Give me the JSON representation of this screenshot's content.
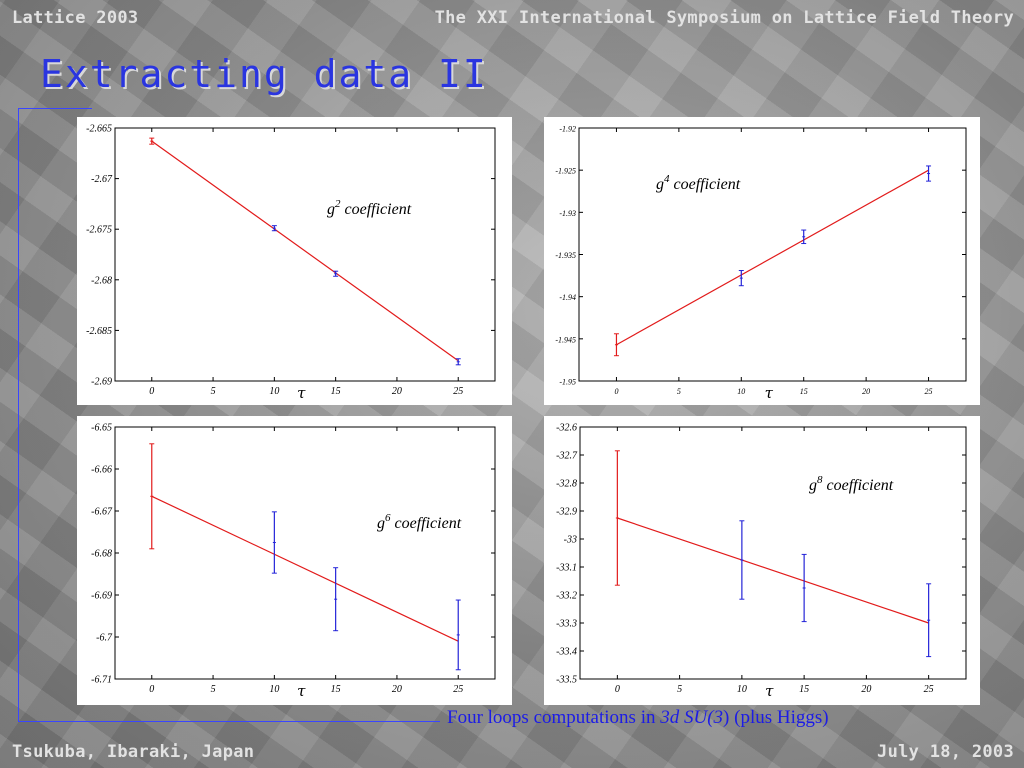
{
  "header": {
    "conference": "Lattice 2003",
    "symposium": "The XXI International Symposium on Lattice Field Theory"
  },
  "title": "Extracting data II",
  "caption": {
    "prefix": "Four loops computations in ",
    "italic": "3d SU(3",
    "middle": ")",
    "suffix": " (plus Higgs)"
  },
  "footer": {
    "location": "Tsukuba, Ibaraki, Japan",
    "date": "July 18, 2003"
  },
  "colors": {
    "title": "#2a35e0",
    "fit_line": "#e21b1b",
    "data_points": "#2424d8",
    "caption": "#1c1ce6"
  },
  "chart_data": [
    {
      "type": "scatter",
      "label_base": "g",
      "label_exp": "2",
      "label_rest": " coefficient",
      "xlabel": "τ",
      "xlim": [
        -3,
        28
      ],
      "ylim": [
        -2.69,
        -2.665
      ],
      "xticks": [
        "0",
        "5",
        "10",
        "15",
        "20",
        "25"
      ],
      "yticks": [
        "-2.665",
        "-2.67",
        "-2.675",
        "-2.68",
        "-2.685",
        "-2.69"
      ],
      "fit": {
        "x": [
          0,
          25
        ],
        "y": [
          -2.6663,
          -2.688
        ]
      },
      "points": [
        {
          "x": 0,
          "y": -2.6663,
          "err": 0.0003,
          "color": "red"
        },
        {
          "x": 10,
          "y": -2.6749,
          "err": 0.00025,
          "color": "blue"
        },
        {
          "x": 15,
          "y": -2.6794,
          "err": 0.00025,
          "color": "blue"
        },
        {
          "x": 25,
          "y": -2.6881,
          "err": 0.0003,
          "color": "blue"
        }
      ]
    },
    {
      "type": "scatter",
      "label_base": "g",
      "label_exp": "4",
      "label_rest": " coefficient",
      "xlabel": "τ",
      "xlim": [
        -3,
        28
      ],
      "ylim": [
        -1.95,
        -1.92
      ],
      "xticks": [
        "0",
        "5",
        "10",
        "15",
        "20",
        "25"
      ],
      "yticks": [
        "-1.92",
        "-1.925",
        "-1.93",
        "-1.935",
        "-1.94",
        "-1.945",
        "-1.95"
      ],
      "fit": {
        "x": [
          0,
          25
        ],
        "y": [
          -1.9457,
          -1.925
        ]
      },
      "points": [
        {
          "x": 0,
          "y": -1.9457,
          "err": 0.0013,
          "color": "red"
        },
        {
          "x": 10,
          "y": -1.9378,
          "err": 0.0009,
          "color": "blue"
        },
        {
          "x": 15,
          "y": -1.9329,
          "err": 0.0008,
          "color": "blue"
        },
        {
          "x": 25,
          "y": -1.9254,
          "err": 0.0009,
          "color": "blue"
        }
      ]
    },
    {
      "type": "scatter",
      "label_base": "g",
      "label_exp": "6",
      "label_rest": " coefficient",
      "xlabel": "τ",
      "xlim": [
        -3,
        28
      ],
      "ylim": [
        -6.71,
        -6.65
      ],
      "xticks": [
        "0",
        "5",
        "10",
        "15",
        "20",
        "25"
      ],
      "yticks": [
        "-6.65",
        "-6.66",
        "-6.67",
        "-6.68",
        "-6.69",
        "-6.7",
        "-6.71"
      ],
      "fit": {
        "x": [
          0,
          25
        ],
        "y": [
          -6.6665,
          -6.701
        ]
      },
      "points": [
        {
          "x": 0,
          "y": -6.6665,
          "err": 0.0125,
          "color": "red"
        },
        {
          "x": 10,
          "y": -6.6775,
          "err": 0.0073,
          "color": "blue"
        },
        {
          "x": 15,
          "y": -6.691,
          "err": 0.0075,
          "color": "blue"
        },
        {
          "x": 25,
          "y": -6.6995,
          "err": 0.0083,
          "color": "blue"
        }
      ]
    },
    {
      "type": "scatter",
      "label_base": "g",
      "label_exp": "8",
      "label_rest": " coefficient",
      "xlabel": "τ",
      "xlim": [
        -3,
        28
      ],
      "ylim": [
        -33.5,
        -32.6
      ],
      "xticks": [
        "0",
        "5",
        "10",
        "15",
        "20",
        "25"
      ],
      "yticks": [
        "-32.6",
        "-32.7",
        "-32.8",
        "-32.9",
        "-33",
        "-33.1",
        "-33.2",
        "-33.3",
        "-33.4",
        "-33.5"
      ],
      "fit": {
        "x": [
          0,
          25
        ],
        "y": [
          -32.925,
          -33.3
        ]
      },
      "points": [
        {
          "x": 0,
          "y": -32.925,
          "err": 0.24,
          "color": "red"
        },
        {
          "x": 10,
          "y": -33.075,
          "err": 0.14,
          "color": "blue"
        },
        {
          "x": 15,
          "y": -33.175,
          "err": 0.12,
          "color": "blue"
        },
        {
          "x": 25,
          "y": -33.29,
          "err": 0.13,
          "color": "blue"
        }
      ]
    }
  ]
}
